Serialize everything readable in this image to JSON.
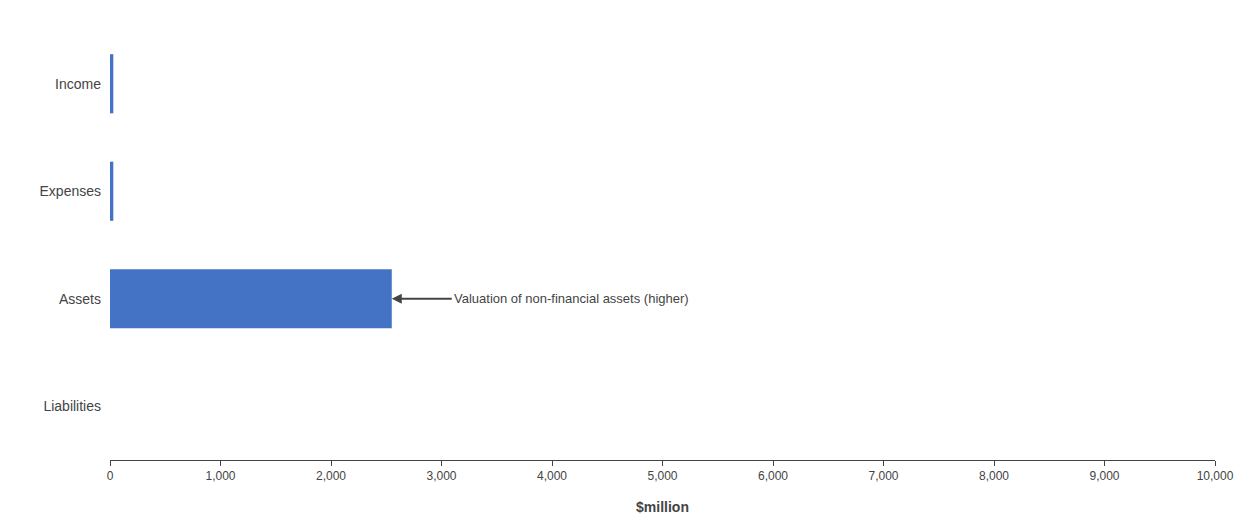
{
  "chart_data": {
    "type": "bar",
    "orientation": "horizontal",
    "categories": [
      "Income",
      "Expenses",
      "Assets",
      "Liabilities"
    ],
    "values": [
      30,
      30,
      2550,
      0
    ],
    "color": "#4472C4",
    "xlabel": "$million",
    "xlim": [
      0,
      10000
    ],
    "xticks": [
      0,
      {
        "value": 1000,
        "label": "1,000"
      },
      {
        "value": 2000,
        "label": "2,000"
      },
      {
        "value": 3000,
        "label": "3,000"
      },
      {
        "value": 4000,
        "label": "4,000"
      },
      {
        "value": 5000,
        "label": "5,000"
      },
      {
        "value": 6000,
        "label": "6,000"
      },
      {
        "value": 7000,
        "label": "7,000"
      },
      {
        "value": 8000,
        "label": "8,000"
      },
      {
        "value": 9000,
        "label": "9,000"
      },
      {
        "value": 10000,
        "label": "10,000"
      }
    ],
    "annotations": [
      {
        "text": "Valuation of non-financial assets (higher)",
        "category": "Assets"
      }
    ],
    "grid": false
  }
}
